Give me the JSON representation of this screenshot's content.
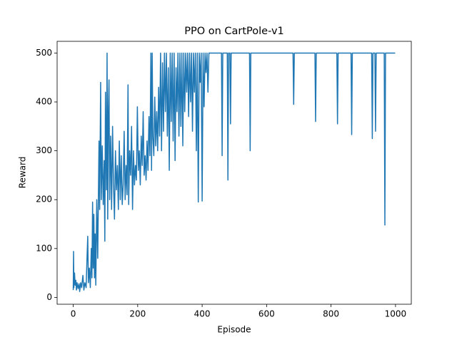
{
  "chart_data": {
    "type": "line",
    "title": "PPO on CartPole-v1",
    "x_label": "Episode",
    "y_label": "Reward",
    "color": "#1f77b4",
    "xlim": [
      -50,
      1049
    ],
    "ylim": [
      -14,
      524
    ],
    "xticks": [
      0,
      200,
      400,
      600,
      800,
      1000
    ],
    "yticks": [
      0,
      100,
      200,
      300,
      400,
      500
    ],
    "x": [
      0,
      1,
      2,
      4,
      6,
      8,
      10,
      12,
      15,
      18,
      20,
      23,
      26,
      30,
      33,
      36,
      40,
      43,
      45,
      47,
      50,
      53,
      56,
      58,
      60,
      62,
      64,
      66,
      68,
      70,
      73,
      76,
      80,
      82,
      85,
      87,
      90,
      93,
      96,
      98,
      100,
      103,
      105,
      107,
      109,
      111,
      113,
      116,
      119,
      122,
      125,
      128,
      131,
      134,
      137,
      140,
      143,
      146,
      149,
      152,
      155,
      158,
      161,
      164,
      167,
      170,
      172,
      175,
      178,
      181,
      184,
      187,
      190,
      193,
      196,
      199,
      202,
      205,
      208,
      211,
      214,
      217,
      220,
      223,
      226,
      229,
      232,
      235,
      238,
      241,
      243,
      245,
      247,
      250,
      253,
      256,
      259,
      262,
      265,
      268,
      271,
      274,
      277,
      280,
      283,
      286,
      289,
      292,
      295,
      298,
      301,
      304,
      307,
      310,
      313,
      316,
      319,
      322,
      325,
      328,
      331,
      334,
      337,
      340,
      343,
      346,
      349,
      352,
      355,
      358,
      361,
      364,
      367,
      370,
      373,
      376,
      379,
      382,
      385,
      388,
      391,
      394,
      397,
      400,
      403,
      406,
      409,
      412,
      415,
      418,
      421,
      460,
      462,
      464,
      478,
      480,
      482,
      486,
      488,
      490,
      547,
      549,
      551,
      682,
      684,
      686,
      750,
      752,
      754,
      818,
      820,
      822,
      862,
      864,
      866,
      926,
      928,
      930,
      936,
      938,
      940,
      965,
      967,
      969,
      999
    ],
    "values": [
      15,
      94,
      20,
      50,
      25,
      35,
      15,
      30,
      18,
      28,
      12,
      30,
      20,
      45,
      15,
      30,
      20,
      85,
      125,
      30,
      60,
      20,
      100,
      40,
      195,
      60,
      170,
      40,
      130,
      25,
      200,
      80,
      320,
      180,
      440,
      200,
      310,
      190,
      280,
      115,
      420,
      220,
      500,
      160,
      380,
      445,
      200,
      330,
      180,
      350,
      230,
      160,
      300,
      220,
      270,
      180,
      320,
      200,
      290,
      190,
      230,
      340,
      200,
      270,
      210,
      435,
      190,
      300,
      250,
      350,
      180,
      300,
      230,
      270,
      240,
      390,
      260,
      300,
      230,
      330,
      270,
      380,
      250,
      290,
      240,
      320,
      260,
      370,
      290,
      500,
      260,
      500,
      330,
      290,
      410,
      310,
      380,
      300,
      430,
      330,
      500,
      300,
      480,
      340,
      500,
      380,
      500,
      330,
      470,
      260,
      500,
      360,
      500,
      320,
      500,
      280,
      470,
      380,
      500,
      330,
      500,
      350,
      500,
      310,
      500,
      380,
      500,
      420,
      500,
      370,
      500,
      400,
      500,
      340,
      500,
      420,
      500,
      300,
      500,
      195,
      500,
      440,
      500,
      197,
      500,
      390,
      500,
      460,
      500,
      420,
      500,
      500,
      290,
      500,
      500,
      240,
      500,
      500,
      355,
      500,
      500,
      300,
      500,
      500,
      395,
      500,
      500,
      360,
      500,
      500,
      355,
      500,
      500,
      333,
      500,
      500,
      325,
      500,
      500,
      340,
      500,
      500,
      148,
      500,
      500
    ]
  }
}
